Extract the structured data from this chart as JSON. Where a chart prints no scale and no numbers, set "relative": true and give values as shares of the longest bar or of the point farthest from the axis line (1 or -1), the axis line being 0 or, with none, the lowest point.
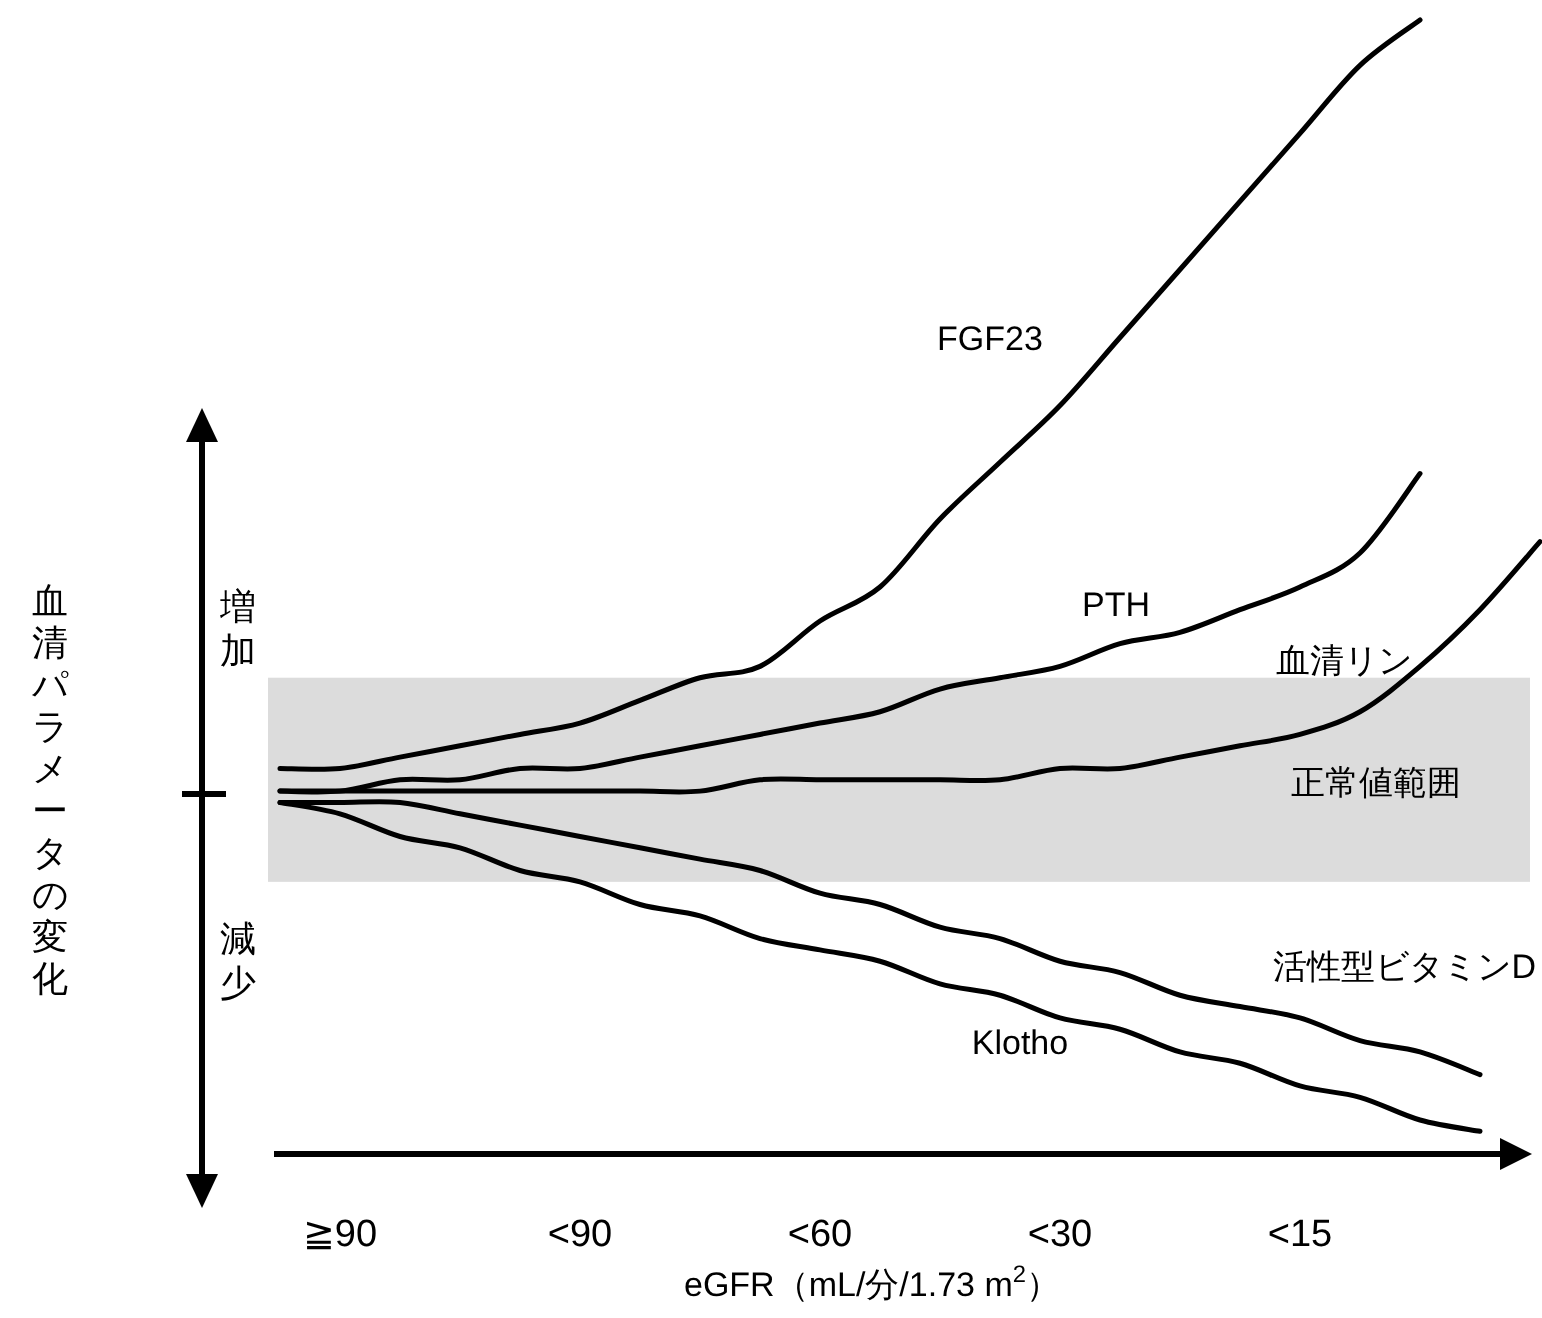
{
  "chart_data": {
    "type": "line",
    "relative": true,
    "xlabel": "eGFR（mL/分/1.73 m$^{2}$）",
    "ylabel": "血清パラメータの変化",
    "categories": [
      null,
      "≧90",
      null,
      null,
      null,
      "<90",
      null,
      null,
      null,
      "<60",
      null,
      null,
      null,
      "<30",
      null,
      null,
      null,
      "<15",
      null,
      null,
      null,
      null
    ],
    "annotations": [
      "増加",
      "減少"
    ],
    "bands": [
      {
        "axis": "y",
        "from": 0.24,
        "to": 0.42,
        "label": "正常値範囲",
        "color": "#dcdcdc"
      }
    ],
    "legend": false,
    "marker": "none",
    "line_style": "solid",
    "series": [
      {
        "name": "FGF23",
        "color": "#000000",
        "values": [
          0.34,
          0.34,
          0.35,
          0.36,
          0.37,
          0.38,
          0.4,
          0.42,
          0.43,
          0.47,
          0.5,
          0.56,
          0.61,
          0.66,
          0.72,
          0.78,
          0.84,
          0.9,
          0.96,
          1,
          null,
          null
        ]
      },
      {
        "name": "PTH",
        "color": "#000000",
        "values": [
          0.32,
          0.32,
          0.33,
          0.33,
          0.34,
          0.34,
          0.35,
          0.36,
          0.37,
          0.38,
          0.39,
          0.41,
          0.42,
          0.43,
          0.45,
          0.46,
          0.48,
          0.5,
          0.53,
          0.6,
          null,
          null
        ]
      },
      {
        "name": "血清リン",
        "color": "#000000",
        "values": [
          0.32,
          0.32,
          0.32,
          0.32,
          0.32,
          0.32,
          0.32,
          0.32,
          0.33,
          0.33,
          0.33,
          0.33,
          0.33,
          0.34,
          0.34,
          0.35,
          0.36,
          0.37,
          0.39,
          0.43,
          0.48,
          0.54
        ]
      },
      {
        "name": "活性型ビタミンD",
        "color": "#000000",
        "values": [
          0.31,
          0.31,
          0.31,
          0.3,
          0.29,
          0.28,
          0.27,
          0.26,
          0.25,
          0.23,
          0.22,
          0.2,
          0.19,
          0.17,
          0.16,
          0.14,
          0.13,
          0.12,
          0.1,
          0.09,
          0.07,
          null
        ]
      },
      {
        "name": "Klotho",
        "color": "#000000",
        "values": [
          0.31,
          0.3,
          0.28,
          0.27,
          0.25,
          0.24,
          0.22,
          0.21,
          0.19,
          0.18,
          0.17,
          0.15,
          0.14,
          0.12,
          0.11,
          0.09,
          0.08,
          0.06,
          0.05,
          0.03,
          0.02,
          null
        ]
      }
    ]
  }
}
